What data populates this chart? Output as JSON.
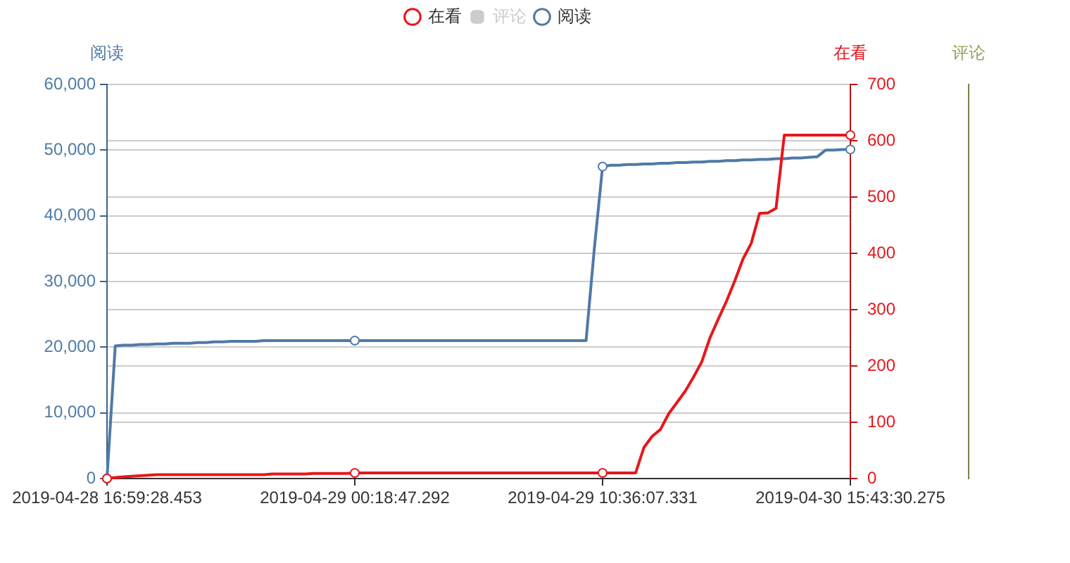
{
  "chart_data": {
    "type": "line",
    "categories": [
      "2019-04-28 16:59:28.453",
      null,
      null,
      null,
      null,
      null,
      null,
      null,
      null,
      null,
      null,
      null,
      null,
      null,
      null,
      null,
      null,
      null,
      null,
      null,
      null,
      null,
      null,
      null,
      null,
      null,
      null,
      null,
      null,
      null,
      "2019-04-29 00:18:47.292",
      null,
      null,
      null,
      null,
      null,
      null,
      null,
      null,
      null,
      null,
      null,
      null,
      null,
      null,
      null,
      null,
      null,
      null,
      null,
      null,
      null,
      null,
      null,
      null,
      null,
      null,
      null,
      null,
      null,
      "2019-04-29 10:36:07.331",
      null,
      null,
      null,
      null,
      null,
      null,
      null,
      null,
      null,
      null,
      null,
      null,
      null,
      null,
      null,
      null,
      null,
      null,
      null,
      null,
      null,
      null,
      null,
      null,
      null,
      null,
      null,
      null,
      null,
      "2019-04-30 15:43:30.275"
    ],
    "ylabel": "阅读",
    "y2label": "在看",
    "y3label": "评论",
    "ylim": [
      0,
      60000
    ],
    "yticks": [
      0,
      {
        "value": 10000,
        "label": "10,000"
      },
      {
        "value": 20000,
        "label": "20,000"
      },
      {
        "value": 30000,
        "label": "30,000"
      },
      {
        "value": 40000,
        "label": "40,000"
      },
      {
        "value": 50000,
        "label": "50,000"
      },
      {
        "value": 60000,
        "label": "60,000"
      }
    ],
    "y2lim": [
      0,
      700
    ],
    "y2ticks": [
      0,
      100,
      200,
      300,
      400,
      500,
      600,
      700
    ],
    "series": [
      {
        "name": "在看",
        "color": "#e8161b",
        "axis": "y2",
        "marker": "none",
        "values": [
          0,
          2,
          3,
          4,
          5,
          6,
          7,
          7,
          7,
          7,
          7,
          7,
          7,
          7,
          7,
          7,
          7,
          7,
          7,
          7,
          8,
          8,
          8,
          8,
          8,
          9,
          9,
          9,
          9,
          9,
          10,
          10,
          10,
          10,
          10,
          10,
          10,
          10,
          10,
          10,
          10,
          10,
          10,
          10,
          10,
          10,
          10,
          10,
          10,
          10,
          10,
          10,
          10,
          10,
          10,
          10,
          10,
          10,
          10,
          10,
          10,
          10,
          10,
          10,
          10,
          55,
          75,
          87,
          115,
          135,
          155,
          180,
          207,
          250,
          283,
          315,
          351,
          390,
          418,
          471,
          472,
          480,
          610,
          610,
          610,
          610,
          610,
          610,
          610,
          610,
          610
        ]
      },
      {
        "name": "评论",
        "color": "#cccccc",
        "values": [
          null,
          null,
          null,
          null,
          null,
          null,
          null,
          null,
          null,
          null,
          null,
          null,
          null,
          null,
          null,
          null,
          null,
          null,
          null,
          null,
          null,
          null,
          null,
          null,
          null,
          null,
          null,
          null,
          null,
          null,
          null,
          null,
          null,
          null,
          null,
          null,
          null,
          null,
          null,
          null,
          null,
          null,
          null,
          null,
          null,
          null,
          null,
          null,
          null,
          null,
          null,
          null,
          null,
          null,
          null,
          null,
          null,
          null,
          null,
          null,
          null,
          null,
          null,
          null,
          null,
          null,
          null,
          null,
          null,
          null,
          null,
          null,
          null,
          null,
          null,
          null,
          null,
          null,
          null,
          null,
          null,
          null,
          null,
          null,
          null,
          null,
          null,
          null,
          null,
          null,
          null
        ]
      },
      {
        "name": "阅读",
        "color": "#4f7aa6",
        "marker": "none",
        "values": [
          0,
          20200,
          20300,
          20300,
          20400,
          20400,
          20500,
          20500,
          20600,
          20600,
          20600,
          20700,
          20700,
          20800,
          20800,
          20900,
          20900,
          20900,
          20900,
          21000,
          21000,
          21000,
          21000,
          21000,
          21000,
          21000,
          21000,
          21000,
          21000,
          21000,
          21000,
          21000,
          21000,
          21000,
          21000,
          21000,
          21000,
          21000,
          21000,
          21000,
          21000,
          21000,
          21000,
          21000,
          21000,
          21000,
          21000,
          21000,
          21000,
          21000,
          21000,
          21000,
          21000,
          21000,
          21000,
          21000,
          21000,
          21000,
          21000,
          35000,
          47500,
          47700,
          47700,
          47800,
          47800,
          47900,
          47900,
          48000,
          48000,
          48100,
          48100,
          48200,
          48200,
          48300,
          48300,
          48400,
          48400,
          48500,
          48500,
          48600,
          48600,
          48700,
          48700,
          48800,
          48800,
          48900,
          49000,
          50000,
          50000,
          50100,
          50100
        ]
      },
      {
        "type": "scatter",
        "color": "#e8161b",
        "axis": "y2",
        "values": [
          0,
          null,
          null,
          null,
          null,
          null,
          null,
          null,
          null,
          null,
          null,
          null,
          null,
          null,
          null,
          null,
          null,
          null,
          null,
          null,
          null,
          null,
          null,
          null,
          null,
          null,
          null,
          null,
          null,
          null,
          10,
          null,
          null,
          null,
          null,
          null,
          null,
          null,
          null,
          null,
          null,
          null,
          null,
          null,
          null,
          null,
          null,
          null,
          null,
          null,
          null,
          null,
          null,
          null,
          null,
          null,
          null,
          null,
          null,
          null,
          10,
          null,
          null,
          null,
          null,
          null,
          null,
          null,
          null,
          null,
          null,
          null,
          null,
          null,
          null,
          null,
          null,
          null,
          null,
          null,
          null,
          null,
          null,
          null,
          null,
          null,
          null,
          null,
          null,
          null,
          610
        ]
      },
      {
        "type": "scatter",
        "color": "#4f7aa6",
        "values": [
          0,
          null,
          null,
          null,
          null,
          null,
          null,
          null,
          null,
          null,
          null,
          null,
          null,
          null,
          null,
          null,
          null,
          null,
          null,
          null,
          null,
          null,
          null,
          null,
          null,
          null,
          null,
          null,
          null,
          null,
          21000,
          null,
          null,
          null,
          null,
          null,
          null,
          null,
          null,
          null,
          null,
          null,
          null,
          null,
          null,
          null,
          null,
          null,
          null,
          null,
          null,
          null,
          null,
          null,
          null,
          null,
          null,
          null,
          null,
          null,
          47500,
          null,
          null,
          null,
          null,
          null,
          null,
          null,
          null,
          null,
          null,
          null,
          null,
          null,
          null,
          null,
          null,
          null,
          null,
          null,
          null,
          null,
          null,
          null,
          null,
          null,
          null,
          null,
          null,
          null,
          50100
        ]
      }
    ],
    "grid": "y",
    "legend": "top",
    "marker": "circle"
  }
}
